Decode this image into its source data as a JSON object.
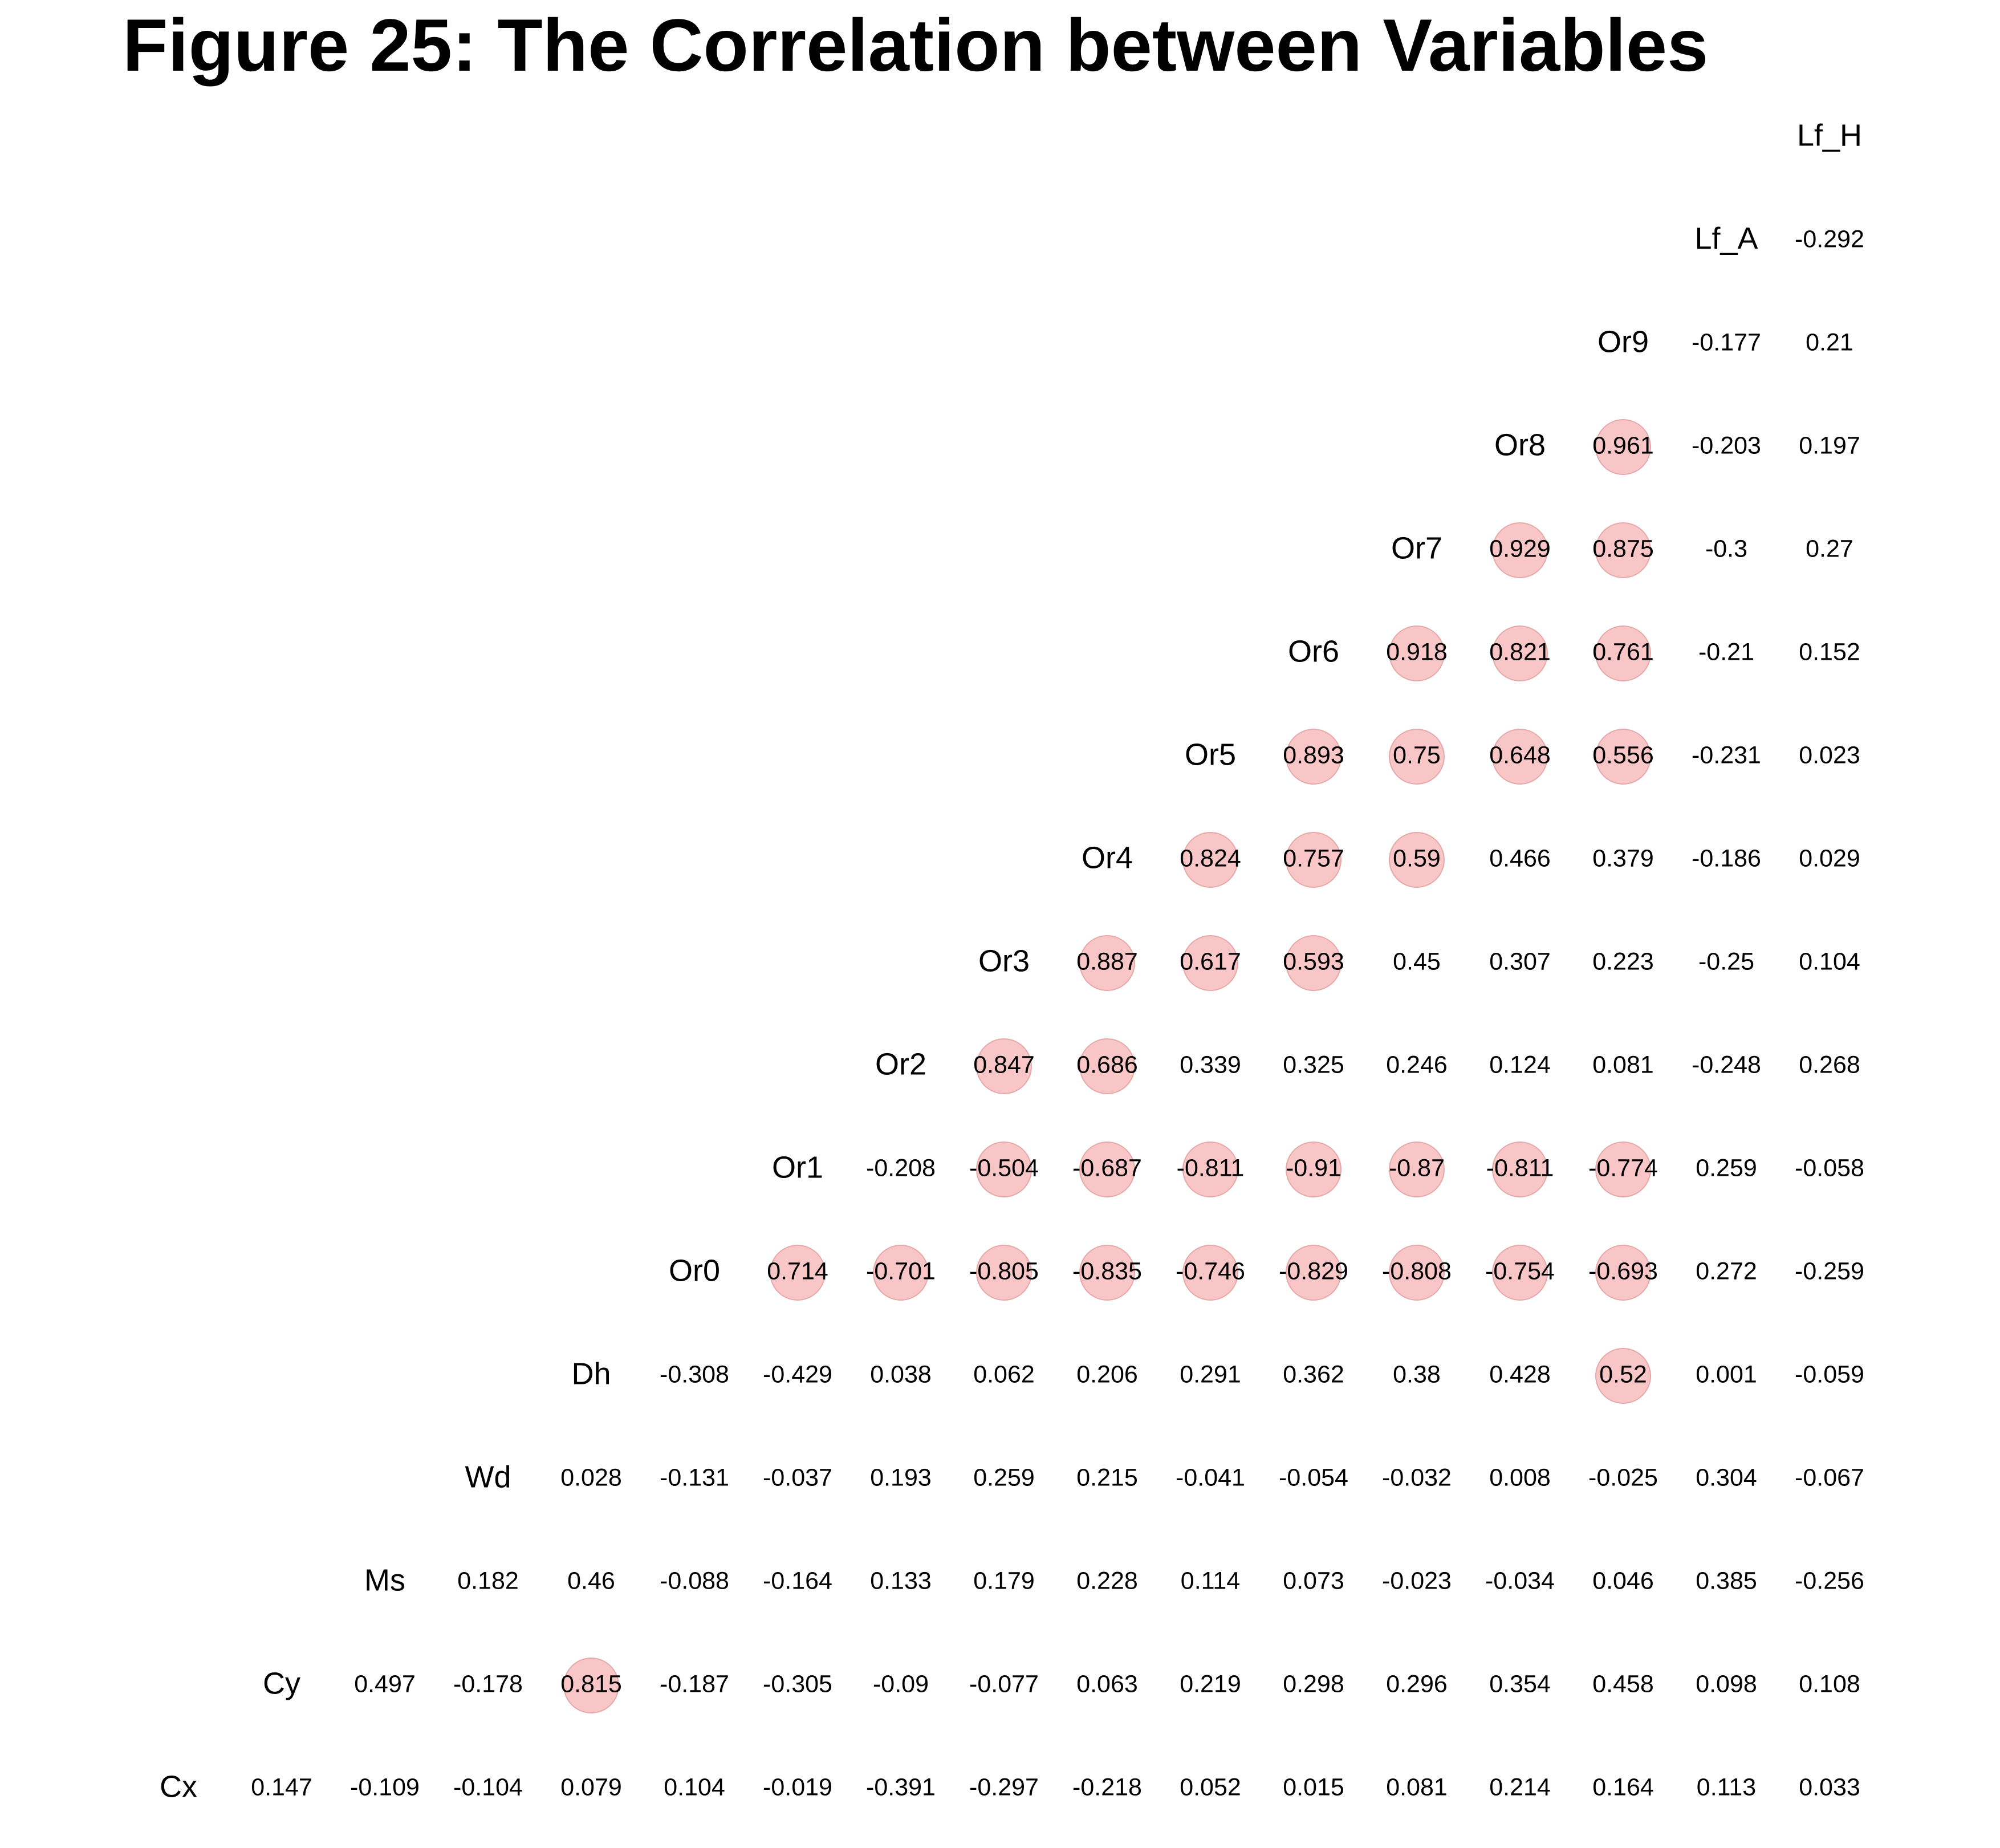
{
  "title": "Figure 25: The Correlation between Variables",
  "colors": {
    "highlight_fill": "#f8c6c6",
    "highlight_stroke": "#e8a8a8",
    "text": "#000000",
    "background": "#ffffff"
  },
  "chart_data": {
    "type": "heatmap",
    "title": "Figure 25: The Correlation between Variables",
    "layout": "upper-triangle staircase, diagonal holds variable names, bottom-left to top-right",
    "highlight_rule": "|r| >= 0.5 shown with shaded circle",
    "variables": [
      "Cx",
      "Cy",
      "Ms",
      "Wd",
      "Dh",
      "Or0",
      "Or1",
      "Or2",
      "Or3",
      "Or4",
      "Or5",
      "Or6",
      "Or7",
      "Or8",
      "Or9",
      "Lf_A",
      "Lf_H"
    ],
    "rows": [
      {
        "variable": "Cx",
        "display": [
          "0.147",
          "-0.109",
          "-0.104",
          "0.079",
          "0.104",
          "-0.019",
          "-0.391",
          "-0.297",
          "-0.218",
          "0.052",
          "0.015",
          "0.081",
          "0.214",
          "0.164",
          "0.113",
          "0.033"
        ]
      },
      {
        "variable": "Cy",
        "display": [
          "0.497",
          "-0.178",
          "0.815",
          "-0.187",
          "-0.305",
          "-0.09",
          "-0.077",
          "0.063",
          "0.219",
          "0.298",
          "0.296",
          "0.354",
          "0.458",
          "0.098",
          "0.108"
        ]
      },
      {
        "variable": "Ms",
        "display": [
          "0.182",
          "0.46",
          "-0.088",
          "-0.164",
          "0.133",
          "0.179",
          "0.228",
          "0.114",
          "0.073",
          "-0.023",
          "-0.034",
          "0.046",
          "0.385",
          "-0.256"
        ]
      },
      {
        "variable": "Wd",
        "display": [
          "0.028",
          "-0.131",
          "-0.037",
          "0.193",
          "0.259",
          "0.215",
          "-0.041",
          "-0.054",
          "-0.032",
          "0.008",
          "-0.025",
          "0.304",
          "-0.067"
        ]
      },
      {
        "variable": "Dh",
        "display": [
          "-0.308",
          "-0.429",
          "0.038",
          "0.062",
          "0.206",
          "0.291",
          "0.362",
          "0.38",
          "0.428",
          "0.52",
          "0.001",
          "-0.059"
        ]
      },
      {
        "variable": "Or0",
        "display": [
          "0.714",
          "-0.701",
          "-0.805",
          "-0.835",
          "-0.746",
          "-0.829",
          "-0.808",
          "-0.754",
          "-0.693",
          "0.272",
          "-0.259"
        ]
      },
      {
        "variable": "Or1",
        "display": [
          "-0.208",
          "-0.504",
          "-0.687",
          "-0.811",
          "-0.91",
          "-0.87",
          "-0.811",
          "-0.774",
          "0.259",
          "-0.058"
        ]
      },
      {
        "variable": "Or2",
        "display": [
          "0.847",
          "0.686",
          "0.339",
          "0.325",
          "0.246",
          "0.124",
          "0.081",
          "-0.248",
          "0.268"
        ]
      },
      {
        "variable": "Or3",
        "display": [
          "0.887",
          "0.617",
          "0.593",
          "0.45",
          "0.307",
          "0.223",
          "-0.25",
          "0.104"
        ]
      },
      {
        "variable": "Or4",
        "display": [
          "0.824",
          "0.757",
          "0.59",
          "0.466",
          "0.379",
          "-0.186",
          "0.029"
        ]
      },
      {
        "variable": "Or5",
        "display": [
          "0.893",
          "0.75",
          "0.648",
          "0.556",
          "-0.231",
          "0.023"
        ]
      },
      {
        "variable": "Or6",
        "display": [
          "0.918",
          "0.821",
          "0.761",
          "-0.21",
          "0.152"
        ]
      },
      {
        "variable": "Or7",
        "display": [
          "0.929",
          "0.875",
          "-0.3",
          "0.27"
        ]
      },
      {
        "variable": "Or8",
        "display": [
          "0.961",
          "-0.203",
          "0.197"
        ]
      },
      {
        "variable": "Or9",
        "display": [
          "-0.177",
          "0.21"
        ]
      },
      {
        "variable": "Lf_A",
        "display": [
          "-0.292"
        ]
      },
      {
        "variable": "Lf_H",
        "display": []
      }
    ]
  }
}
